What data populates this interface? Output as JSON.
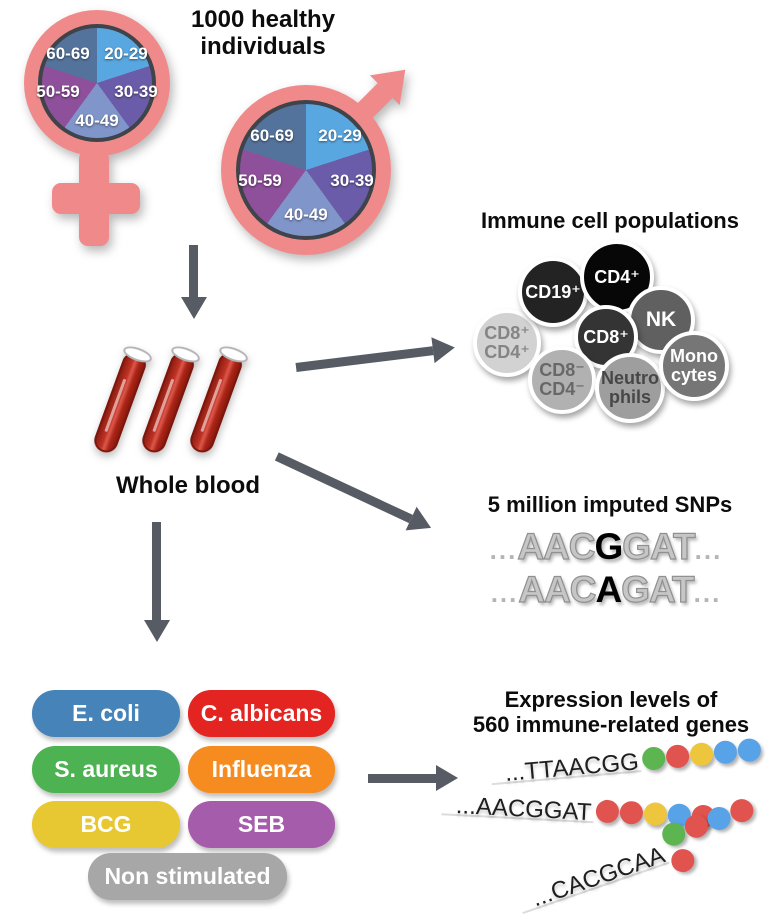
{
  "palette": {
    "pink": "#f08a8a",
    "arrow_gray": "#575c64",
    "green": "#5cb551",
    "red": "#e0534f",
    "yellow": "#eec63d",
    "blue": "#58a3e8",
    "blood_red": "#b2271a"
  },
  "header": {
    "line1": "1000 healthy",
    "line2": "individuals"
  },
  "chart_data": {
    "type": "pie",
    "title": "Age distribution of the cohort (identical pie shown inside female and male symbols)",
    "categories": [
      "20-29",
      "30-39",
      "40-49",
      "50-59",
      "60-69"
    ],
    "values": [
      20,
      20,
      20,
      20,
      20
    ],
    "colors": [
      "#58a7e0",
      "#6b5ca9",
      "#8095c9",
      "#8e4f9b",
      "#54739c"
    ],
    "legend_position": "labels inside slices"
  },
  "whole_blood": {
    "label": "Whole blood"
  },
  "immune_cells": {
    "title": "Immune cell populations",
    "cells": [
      {
        "lines": [
          "CD8⁺",
          "CD4⁺"
        ],
        "bg": "#d2d2d2",
        "fg": "#858585"
      },
      {
        "lines": [
          "CD19⁺"
        ],
        "bg": "#232323",
        "fg": "#ffffff"
      },
      {
        "lines": [
          "CD4⁺"
        ],
        "bg": "#070707",
        "fg": "#ffffff"
      },
      {
        "lines": [
          "NK"
        ],
        "bg": "#606060",
        "fg": "#ffffff"
      },
      {
        "lines": [
          "CD8⁺"
        ],
        "bg": "#343434",
        "fg": "#ffffff"
      },
      {
        "lines": [
          "CD8⁻",
          "CD4⁻"
        ],
        "bg": "#b1b1b1",
        "fg": "#686868"
      },
      {
        "lines": [
          "Neutro",
          "phils"
        ],
        "bg": "#9e9e9e",
        "fg": "#474747"
      },
      {
        "lines": [
          "Mono",
          "cytes"
        ],
        "bg": "#767676",
        "fg": "#ffffff"
      }
    ]
  },
  "snps": {
    "title": "5 million imputed SNPs",
    "sequences": [
      {
        "prefix": "...",
        "before": "AAC",
        "variant": "G",
        "after": "GAT",
        "suffix": "..."
      },
      {
        "prefix": "...",
        "before": "AAC",
        "variant": "A",
        "after": "GAT",
        "suffix": "..."
      }
    ]
  },
  "stimuli": {
    "pills": [
      {
        "label": "E. coli",
        "color": "#4583b8"
      },
      {
        "label": "C. albicans",
        "color": "#e32421"
      },
      {
        "label": "S. aureus",
        "color": "#4db251"
      },
      {
        "label": "Influenza",
        "color": "#f68b1f"
      },
      {
        "label": "BCG",
        "color": "#e7c832"
      },
      {
        "label": "SEB",
        "color": "#a45cab"
      },
      {
        "label": "Non stimulated",
        "color": "#a7a7a7"
      }
    ]
  },
  "expression": {
    "title_line1": "Expression levels of",
    "title_line2": "560 immune-related genes",
    "genes": [
      {
        "sequence": "...TTAACGG",
        "dots": [
          "green",
          "red",
          "yellow",
          "blue",
          "blue"
        ]
      },
      {
        "sequence": "...AACGGAT",
        "dots": [
          "red",
          "red",
          "yellow",
          "blue",
          "red"
        ]
      },
      {
        "sequence": "...CACGCAA",
        "dots": [
          "green",
          "red",
          "blue",
          "red",
          "red"
        ]
      }
    ]
  }
}
